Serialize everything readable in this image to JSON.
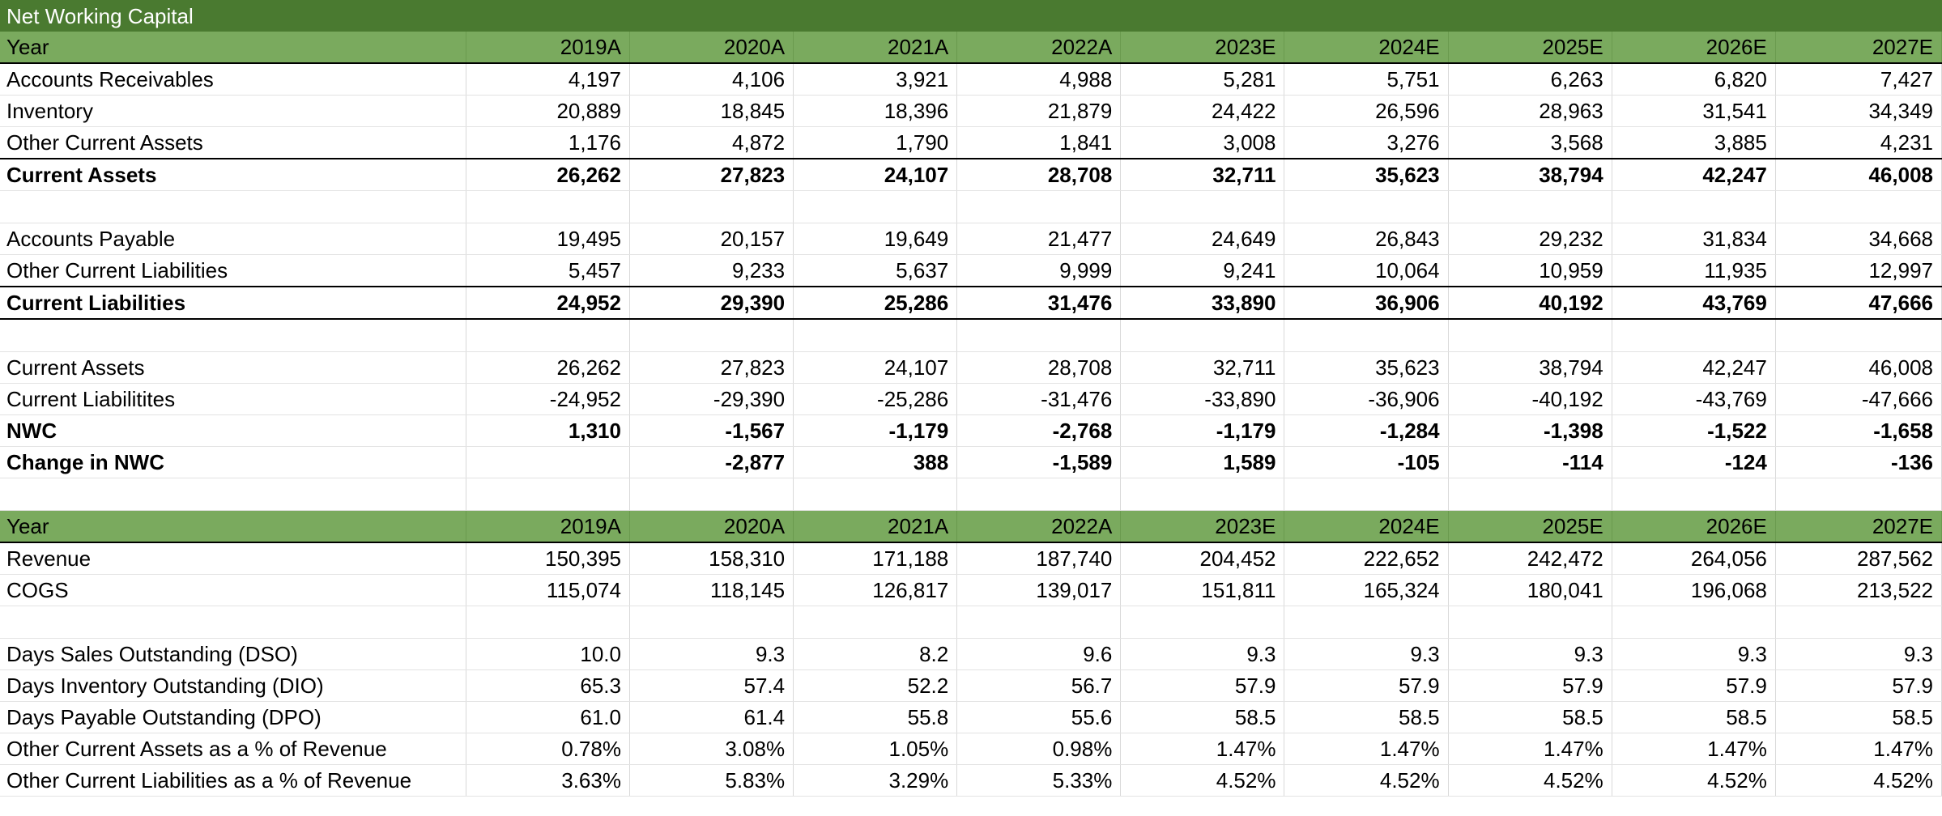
{
  "title": "Net Working Capital",
  "years": [
    "2019A",
    "2020A",
    "2021A",
    "2022A",
    "2023E",
    "2024E",
    "2025E",
    "2026E",
    "2027E"
  ],
  "year_label": "Year",
  "rows": [
    {
      "type": "title"
    },
    {
      "type": "header"
    },
    {
      "label": "Accounts Receivables",
      "values": [
        "4,197",
        "4,106",
        "3,921",
        "4,988",
        "5,281",
        "5,751",
        "6,263",
        "6,820",
        "7,427"
      ]
    },
    {
      "label": "Inventory",
      "values": [
        "20,889",
        "18,845",
        "18,396",
        "21,879",
        "24,422",
        "26,596",
        "28,963",
        "31,541",
        "34,349"
      ]
    },
    {
      "label": "Other Current Assets",
      "values": [
        "1,176",
        "4,872",
        "1,790",
        "1,841",
        "3,008",
        "3,276",
        "3,568",
        "3,885",
        "4,231"
      ]
    },
    {
      "label": "Current Assets",
      "values": [
        "26,262",
        "27,823",
        "24,107",
        "28,708",
        "32,711",
        "35,623",
        "38,794",
        "42,247",
        "46,008"
      ],
      "style": "bold top-border"
    },
    {
      "type": "blank"
    },
    {
      "label": "Accounts Payable",
      "values": [
        "19,495",
        "20,157",
        "19,649",
        "21,477",
        "24,649",
        "26,843",
        "29,232",
        "31,834",
        "34,668"
      ]
    },
    {
      "label": "Other Current Liabilities",
      "values": [
        "5,457",
        "9,233",
        "5,637",
        "9,999",
        "9,241",
        "10,064",
        "10,959",
        "11,935",
        "12,997"
      ]
    },
    {
      "label": "Current Liabilities",
      "values": [
        "24,952",
        "29,390",
        "25,286",
        "31,476",
        "33,890",
        "36,906",
        "40,192",
        "43,769",
        "47,666"
      ],
      "style": "bold top-border bottom-border"
    },
    {
      "type": "blank"
    },
    {
      "label": "Current Assets",
      "values": [
        "26,262",
        "27,823",
        "24,107",
        "28,708",
        "32,711",
        "35,623",
        "38,794",
        "42,247",
        "46,008"
      ]
    },
    {
      "label": "Current Liabilitites",
      "values": [
        "-24,952",
        "-29,390",
        "-25,286",
        "-31,476",
        "-33,890",
        "-36,906",
        "-40,192",
        "-43,769",
        "-47,666"
      ]
    },
    {
      "label": "NWC",
      "values": [
        "1,310",
        "-1,567",
        "-1,179",
        "-2,768",
        "-1,179",
        "-1,284",
        "-1,398",
        "-1,522",
        "-1,658"
      ],
      "style": "bold"
    },
    {
      "label": "Change in NWC",
      "values": [
        "",
        "-2,877",
        "388",
        "-1,589",
        "1,589",
        "-105",
        "-114",
        "-124",
        "-136"
      ],
      "style": "bold"
    },
    {
      "type": "blank"
    },
    {
      "type": "header"
    },
    {
      "label": "Revenue",
      "values": [
        "150,395",
        "158,310",
        "171,188",
        "187,740",
        "204,452",
        "222,652",
        "242,472",
        "264,056",
        "287,562"
      ]
    },
    {
      "label": "COGS",
      "values": [
        "115,074",
        "118,145",
        "126,817",
        "139,017",
        "151,811",
        "165,324",
        "180,041",
        "196,068",
        "213,522"
      ]
    },
    {
      "type": "blank"
    },
    {
      "label": "Days Sales Outstanding (DSO)",
      "values": [
        "10.0",
        "9.3",
        "8.2",
        "9.6",
        "9.3",
        "9.3",
        "9.3",
        "9.3",
        "9.3"
      ]
    },
    {
      "label": "Days Inventory Outstanding (DIO)",
      "values": [
        "65.3",
        "57.4",
        "52.2",
        "56.7",
        "57.9",
        "57.9",
        "57.9",
        "57.9",
        "57.9"
      ]
    },
    {
      "label": "Days Payable Outstanding (DPO)",
      "values": [
        "61.0",
        "61.4",
        "55.8",
        "55.6",
        "58.5",
        "58.5",
        "58.5",
        "58.5",
        "58.5"
      ]
    },
    {
      "label": "Other Current Assets as a % of Revenue",
      "values": [
        "0.78%",
        "3.08%",
        "1.05%",
        "0.98%",
        "1.47%",
        "1.47%",
        "1.47%",
        "1.47%",
        "1.47%"
      ]
    },
    {
      "label": "Other Current Liabilities as a % of Revenue",
      "values": [
        "3.63%",
        "5.83%",
        "3.29%",
        "5.33%",
        "4.52%",
        "4.52%",
        "4.52%",
        "4.52%",
        "4.52%"
      ]
    }
  ]
}
